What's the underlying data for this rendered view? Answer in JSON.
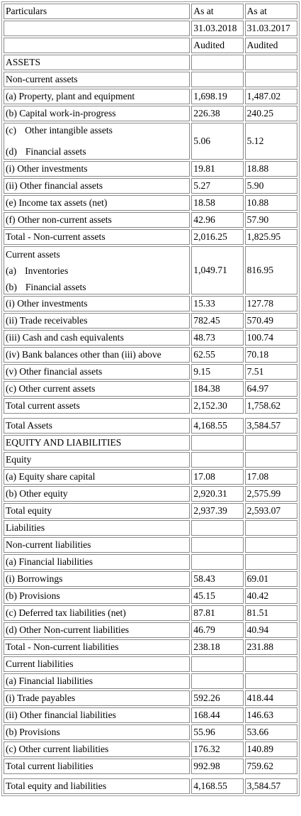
{
  "header": {
    "particulars": "Particulars",
    "col1_line1": "As at",
    "col2_line1": "As at",
    "col1_date": "31.03.2018",
    "col2_date": "31.03.2017",
    "col1_status": "Audited",
    "col2_status": "Audited"
  },
  "rows": {
    "assets": "ASSETS",
    "nca": "Non-current assets",
    "ppe": {
      "label": "(a) Property, plant and equipment",
      "v1": "1,698.19",
      "v2": "1,487.02"
    },
    "cwip": {
      "label": "(b) Capital work-in-progress",
      "v1": "226.38",
      "v2": "240.25"
    },
    "oia": {
      "label_a": "(c)",
      "label_b": "Other intangible assets",
      "label_c": "(d)",
      "label_d": "Financial assets",
      "v1": "5.06",
      "v2": "5.12"
    },
    "nc_oi": {
      "label": "(i) Other investments",
      "v1": "19.81",
      "v2": "18.88"
    },
    "nc_ofa": {
      "label": "(ii) Other financial assets",
      "v1": "5.27",
      "v2": "5.90"
    },
    "ita": {
      "label": "(e) Income tax assets (net)",
      "v1": "18.58",
      "v2": "10.88"
    },
    "onca": {
      "label": "(f) Other non-current assets",
      "v1": "42.96",
      "v2": "57.90"
    },
    "tnca": {
      "label": "Total - Non-current assets",
      "v1": "2,016.25",
      "v2": "1,825.95"
    },
    "inv": {
      "label_a": "Current assets",
      "label_b": "(a)",
      "label_c": "Inventories",
      "label_d": "(b)",
      "label_e": "Financial assets",
      "v1": "1,049.71",
      "v2": "816.95"
    },
    "c_oi": {
      "label": "(i) Other investments",
      "v1": "15.33",
      "v2": "127.78"
    },
    "tr": {
      "label": "(ii) Trade receivables",
      "v1": "782.45",
      "v2": "570.49"
    },
    "cash": {
      "label": "(iii) Cash and cash equivalents",
      "v1": "48.73",
      "v2": "100.74"
    },
    "bank": {
      "label": "(iv) Bank balances other than (iii) above",
      "v1": "62.55",
      "v2": "70.18"
    },
    "c_ofa": {
      "label": "(v) Other financial assets",
      "v1": "9.15",
      "v2": "7.51"
    },
    "oca": {
      "label": "(c) Other current assets",
      "v1": "184.38",
      "v2": "64.97"
    },
    "tca": {
      "label": "Total current assets",
      "v1": "2,152.30",
      "v2": "1,758.62"
    },
    "ta": {
      "label": "Total Assets",
      "v1": "4,168.55",
      "v2": "3,584.57"
    },
    "eq_liab": "EQUITY AND LIABILITIES",
    "equity": "Equity",
    "esc": {
      "label": "(a) Equity share capital",
      "v1": "17.08",
      "v2": "17.08"
    },
    "oe": {
      "label": "(b) Other equity",
      "v1": "2,920.31",
      "v2": "2,575.99"
    },
    "te": {
      "label": "Total equity",
      "v1": "2,937.39",
      "v2": "2,593.07"
    },
    "liabilities": "Liabilities",
    "ncl": "Non-current liabilities",
    "ncl_fl": "(a) Financial liabilities",
    "borrow": {
      "label": "(i) Borrowings",
      "v1": "58.43",
      "v2": "69.01"
    },
    "nc_prov": {
      "label": "(b) Provisions",
      "v1": "45.15",
      "v2": "40.42"
    },
    "dtl": {
      "label": "(c) Deferred tax liabilities (net)",
      "v1": "87.81",
      "v2": "81.51"
    },
    "oncl": {
      "label": "(d) Other Non-current liabilities",
      "v1": "46.79",
      "v2": "40.94"
    },
    "tncl": {
      "label": "Total - Non-current liabilities",
      "v1": "238.18",
      "v2": "231.88"
    },
    "cl": "Current liabilities",
    "cl_fl": "(a) Financial liabilities",
    "tp": {
      "label": "(i) Trade payables",
      "v1": "592.26",
      "v2": "418.44"
    },
    "c_ofl": {
      "label": "(ii) Other financial liabilities",
      "v1": "168.44",
      "v2": "146.63"
    },
    "c_prov": {
      "label": "(b) Provisions",
      "v1": "55.96",
      "v2": "53.66"
    },
    "ocl": {
      "label": "(c) Other current liabilities",
      "v1": "176.32",
      "v2": "140.89"
    },
    "tcl": {
      "label": "Total current liabilities",
      "v1": "992.98",
      "v2": "759.62"
    },
    "tel": {
      "label": "Total equity and liabilities",
      "v1": "4,168.55",
      "v2": "3,584.57"
    }
  }
}
